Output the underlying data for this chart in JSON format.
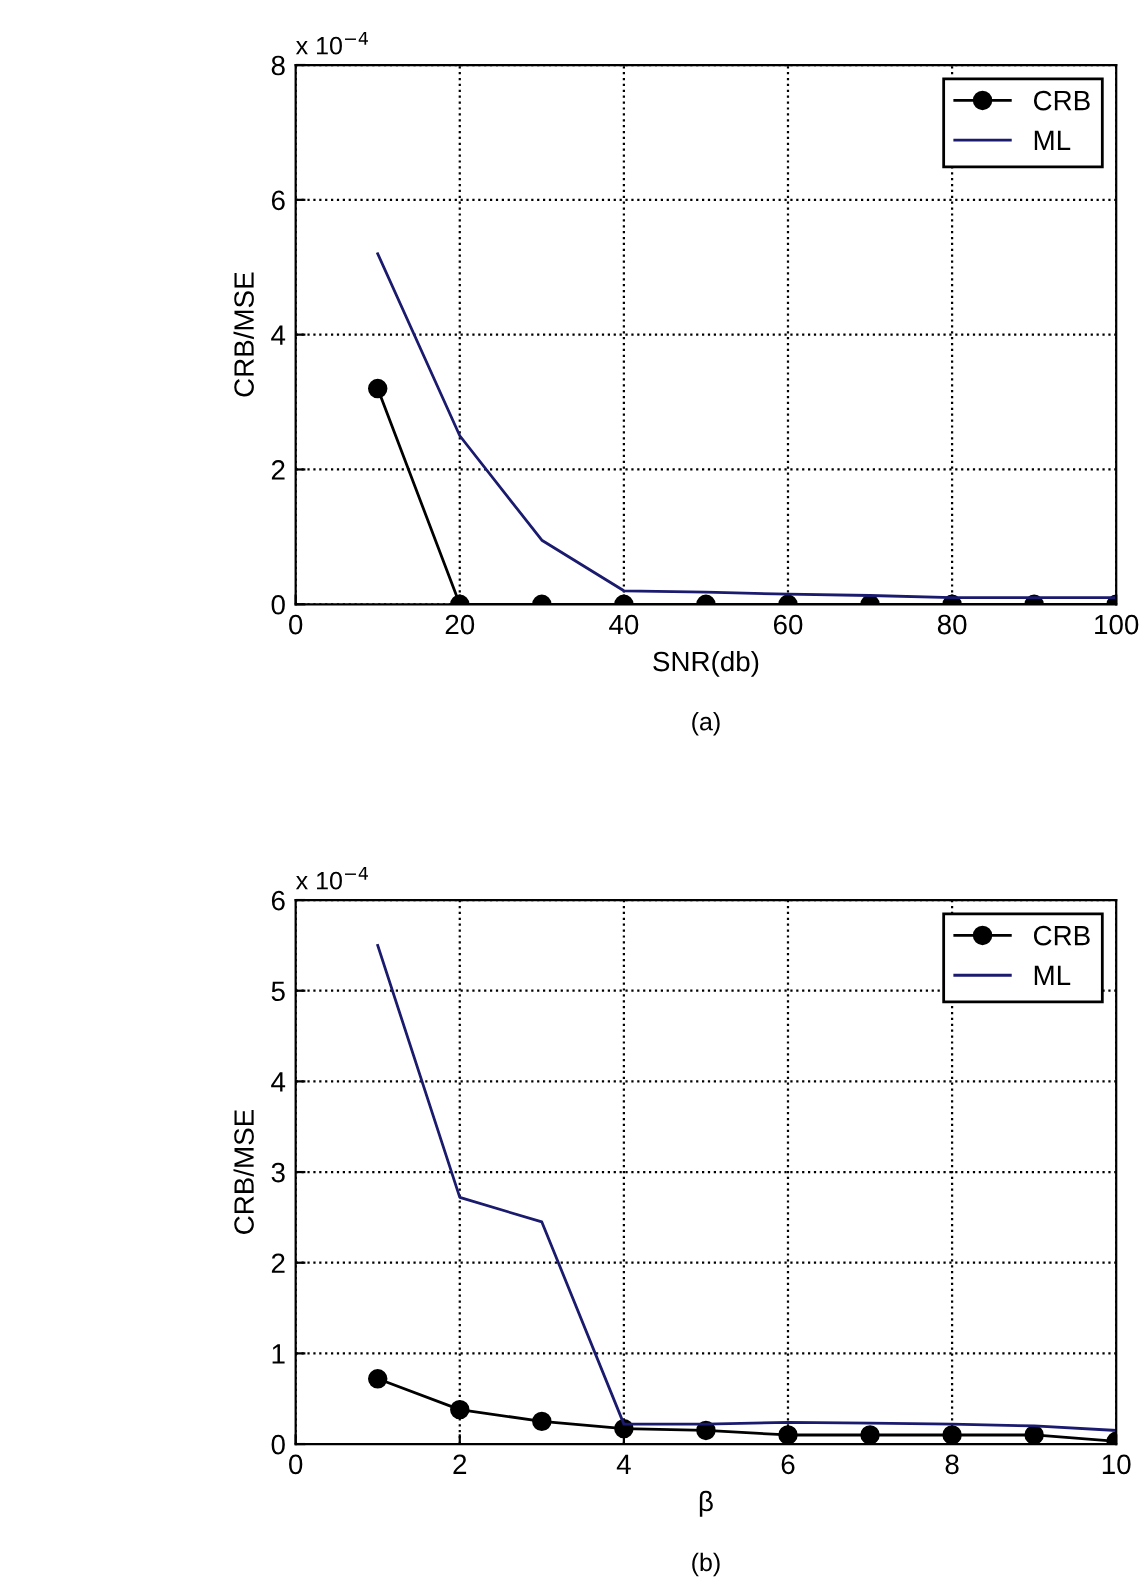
{
  "chart_data": [
    {
      "type": "line",
      "xlabel": "SNR(db)",
      "ylabel": "CRB/MSE",
      "x": [
        10,
        20,
        30,
        40,
        50,
        60,
        70,
        80,
        90,
        100
      ],
      "series": [
        {
          "name": "CRB",
          "color": "#000000",
          "marker": "circle",
          "values": [
            3.2,
            0,
            0,
            0,
            0,
            0,
            0,
            0,
            0,
            0
          ]
        },
        {
          "name": "ML",
          "color": "#1a1a6e",
          "marker": "none",
          "values": [
            5.2,
            2.5,
            0.95,
            0.2,
            0.18,
            0.15,
            0.13,
            0.1,
            0.1,
            0.1
          ]
        }
      ],
      "xlim": [
        0,
        100
      ],
      "xticks": [
        0,
        20,
        40,
        60,
        80,
        100
      ],
      "ylim": [
        0,
        8
      ],
      "yticks": [
        0,
        2,
        4,
        6,
        8
      ],
      "grid": true,
      "legend": "top right",
      "line_style": "solid",
      "annotations": [
        "x 10$^{−4}$",
        "(a)"
      ]
    },
    {
      "type": "line",
      "xlabel": "β",
      "ylabel": "CRB/MSE",
      "x": [
        1,
        2,
        3,
        4,
        5,
        6,
        7,
        8,
        9,
        10
      ],
      "series": [
        {
          "name": "CRB",
          "color": "#000000",
          "marker": "circle",
          "values": [
            0.72,
            0.38,
            0.25,
            0.17,
            0.15,
            0.1,
            0.1,
            0.1,
            0.1,
            0.03
          ]
        },
        {
          "name": "ML",
          "color": "#1a1a6e",
          "marker": "none",
          "values": [
            5.5,
            2.72,
            2.45,
            0.22,
            0.22,
            0.24,
            0.23,
            0.22,
            0.2,
            0.15
          ]
        }
      ],
      "xlim": [
        0,
        10
      ],
      "xticks": [
        0,
        2,
        4,
        6,
        8,
        10
      ],
      "ylim": [
        0,
        6
      ],
      "yticks": [
        0,
        1,
        2,
        3,
        4,
        5,
        6
      ],
      "grid": true,
      "legend": "top right",
      "line_style": "solid",
      "annotations": [
        "x 10$^{−4}$",
        "(b)"
      ]
    }
  ]
}
